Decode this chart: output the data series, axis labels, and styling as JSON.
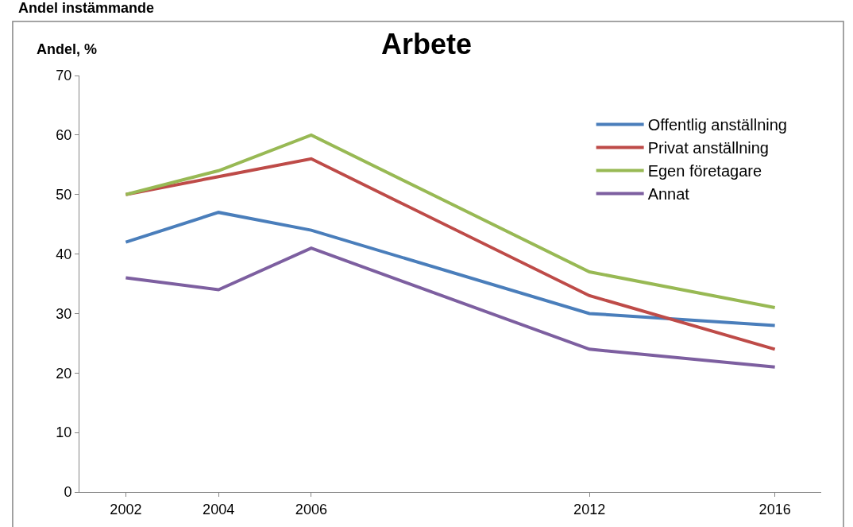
{
  "chart_data": {
    "type": "line",
    "title": "Arbete",
    "ylabel": "Andel, %",
    "annotations": [
      "Andel instämmande"
    ],
    "categories": [
      "2002",
      "2004",
      "2006",
      null,
      null,
      "2012",
      null,
      "2016"
    ],
    "series": [
      {
        "name": "Offentlig anställning",
        "color": "#4a7ebb",
        "values": [
          42,
          47,
          44,
          null,
          null,
          30,
          null,
          28
        ]
      },
      {
        "name": "Privat anställning",
        "color": "#be4b48",
        "values": [
          50,
          53,
          56,
          null,
          null,
          33,
          null,
          24
        ]
      },
      {
        "name": "Egen företagare",
        "color": "#98b954",
        "values": [
          50,
          54,
          60,
          null,
          null,
          37,
          null,
          31
        ]
      },
      {
        "name": "Annat",
        "color": "#7d5fa0",
        "values": [
          36,
          34,
          41,
          null,
          null,
          24,
          null,
          21
        ]
      }
    ],
    "ylim": [
      0,
      70
    ],
    "yticks": [
      0,
      10,
      20,
      30,
      40,
      50,
      60,
      70
    ],
    "grid": false,
    "legend": "top right",
    "marker": "none",
    "line_style": "solid"
  }
}
